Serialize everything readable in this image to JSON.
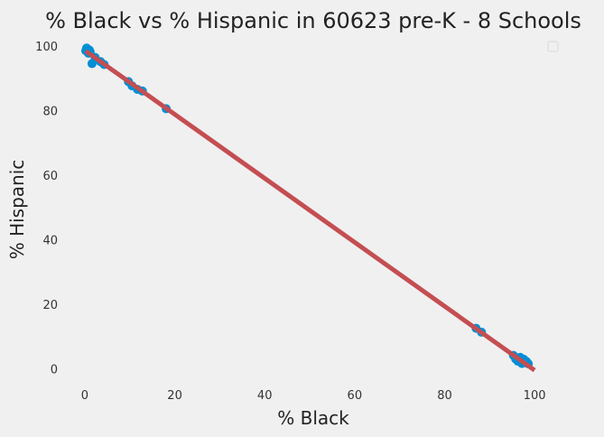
{
  "chart_data": {
    "type": "scatter",
    "title": "% Black vs % Hispanic in 60623 pre-K - 8 Schools",
    "xlabel": "% Black",
    "ylabel": "% Hispanic",
    "xlim": [
      -3,
      105
    ],
    "ylim": [
      -3,
      102
    ],
    "xticks": [
      0,
      20,
      40,
      60,
      80,
      100
    ],
    "yticks": [
      0,
      20,
      40,
      60,
      80,
      100
    ],
    "grid": false,
    "legend": {
      "position": "top-right",
      "entries": []
    },
    "series": [
      {
        "kind": "points",
        "color": "#008fd5",
        "points": [
          {
            "x": 0.2,
            "y": 98.6
          },
          {
            "x": 0.4,
            "y": 99.4
          },
          {
            "x": 0.6,
            "y": 99.0
          },
          {
            "x": 0.8,
            "y": 97.8
          },
          {
            "x": 1.0,
            "y": 98.8
          },
          {
            "x": 1.2,
            "y": 98.2
          },
          {
            "x": 1.6,
            "y": 94.6
          },
          {
            "x": 2.3,
            "y": 96.5
          },
          {
            "x": 3.5,
            "y": 95.2
          },
          {
            "x": 4.3,
            "y": 94.3
          },
          {
            "x": 9.7,
            "y": 89.0
          },
          {
            "x": 10.5,
            "y": 87.7
          },
          {
            "x": 11.7,
            "y": 86.6
          },
          {
            "x": 12.8,
            "y": 86.1
          },
          {
            "x": 18.1,
            "y": 80.6
          },
          {
            "x": 87.0,
            "y": 12.5
          },
          {
            "x": 88.2,
            "y": 11.3
          },
          {
            "x": 95.3,
            "y": 4.1
          },
          {
            "x": 95.8,
            "y": 3.0
          },
          {
            "x": 96.3,
            "y": 2.3
          },
          {
            "x": 96.8,
            "y": 3.5
          },
          {
            "x": 97.2,
            "y": 1.6
          },
          {
            "x": 97.6,
            "y": 2.9
          },
          {
            "x": 98.2,
            "y": 2.2
          },
          {
            "x": 98.6,
            "y": 1.5
          }
        ]
      },
      {
        "kind": "line",
        "color": "#c44e52",
        "points": [
          {
            "x": 0.2,
            "y": 98.5
          },
          {
            "x": 100.0,
            "y": -0.5
          }
        ]
      }
    ]
  }
}
